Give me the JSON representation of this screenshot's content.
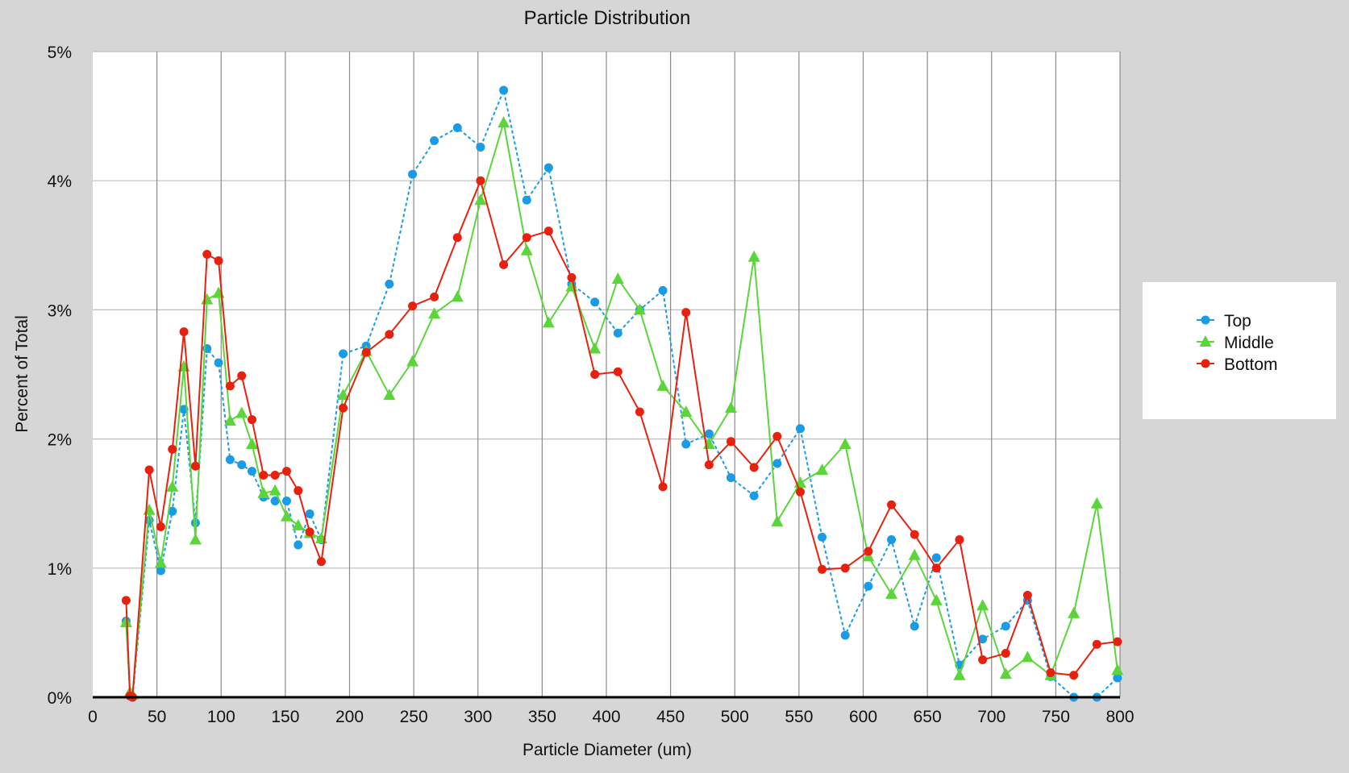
{
  "chart_data": {
    "type": "line",
    "title": "Particle Distribution",
    "xlabel": "Particle Diameter (um)",
    "ylabel": "Percent of Total",
    "xlim": [
      0,
      800
    ],
    "ylim": [
      0,
      5
    ],
    "xticks": [
      0,
      50,
      100,
      150,
      200,
      250,
      300,
      350,
      400,
      450,
      500,
      550,
      600,
      650,
      700,
      750,
      800
    ],
    "yticks": [
      0,
      1,
      2,
      3,
      4,
      5
    ],
    "ytick_format": "%",
    "grid": true,
    "legend_position": "right",
    "x": [
      26,
      29,
      31,
      44,
      53,
      62,
      71,
      80,
      89,
      98,
      107,
      116,
      124,
      133,
      142,
      151,
      160,
      169,
      178,
      195,
      213,
      231,
      249,
      266,
      284,
      302,
      320,
      338,
      355,
      373,
      391,
      409,
      426,
      444,
      462,
      480,
      497,
      515,
      533,
      551,
      568,
      586,
      604,
      622,
      640,
      657,
      675,
      693,
      711,
      728,
      746,
      764,
      782,
      798
    ],
    "series": [
      {
        "name": "Top",
        "color": "#1a9be6",
        "marker": "circle",
        "line": "dotted",
        "values": [
          0.59,
          0.01,
          0,
          1.37,
          0.98,
          1.44,
          2.23,
          1.35,
          2.7,
          2.59,
          1.84,
          1.8,
          1.75,
          1.55,
          1.52,
          1.52,
          1.18,
          1.42,
          1.22,
          2.66,
          2.72,
          3.2,
          4.05,
          4.31,
          4.41,
          4.26,
          4.7,
          3.85,
          4.1,
          3.2,
          3.06,
          2.82,
          3.0,
          3.15,
          1.96,
          2.04,
          1.7,
          1.56,
          1.81,
          2.08,
          1.24,
          0.48,
          0.86,
          1.22,
          0.55,
          1.08,
          0.25,
          0.45,
          0.55,
          0.75,
          0.16,
          0,
          0,
          0.15
        ]
      },
      {
        "name": "Middle",
        "color": "#5bd53a",
        "marker": "triangle",
        "line": "solid",
        "values": [
          0.58,
          0.04,
          0.02,
          1.45,
          1.04,
          1.63,
          2.56,
          1.22,
          3.08,
          3.13,
          2.14,
          2.2,
          1.96,
          1.58,
          1.6,
          1.4,
          1.33,
          1.27,
          1.23,
          2.34,
          2.68,
          2.34,
          2.6,
          2.97,
          3.1,
          3.85,
          4.45,
          3.46,
          2.9,
          3.18,
          2.7,
          3.24,
          3.0,
          2.41,
          2.21,
          1.96,
          2.24,
          3.41,
          1.36,
          1.66,
          1.76,
          1.96,
          1.09,
          0.8,
          1.1,
          0.75,
          0.17,
          0.71,
          0.18,
          0.31,
          0.17,
          0.65,
          1.5,
          0.21
        ]
      },
      {
        "name": "Bottom",
        "color": "#e8210f",
        "marker": "circle",
        "line": "solid",
        "values": [
          0.75,
          0.01,
          0,
          1.76,
          1.32,
          1.92,
          2.83,
          1.79,
          3.43,
          3.38,
          2.41,
          2.49,
          2.15,
          1.72,
          1.72,
          1.75,
          1.6,
          1.28,
          1.05,
          2.24,
          2.67,
          2.81,
          3.03,
          3.1,
          3.56,
          4.0,
          3.35,
          3.56,
          3.61,
          3.25,
          2.5,
          2.52,
          2.21,
          1.63,
          2.98,
          1.8,
          1.98,
          1.78,
          2.02,
          1.59,
          0.99,
          1.0,
          1.13,
          1.49,
          1.26,
          1.0,
          1.22,
          0.29,
          0.34,
          0.79,
          0.19,
          0.17,
          0.41,
          0.43
        ]
      }
    ]
  }
}
